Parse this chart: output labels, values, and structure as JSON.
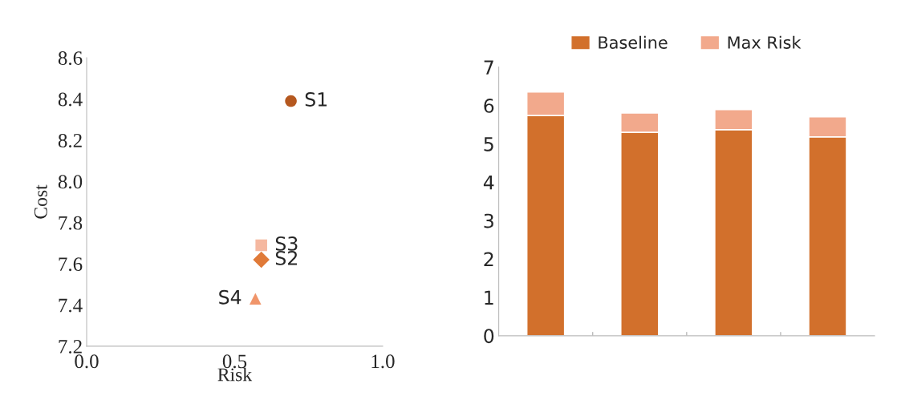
{
  "chart_data": [
    {
      "type": "scatter",
      "xlabel": "Risk",
      "ylabel": "Cost",
      "xlim": [
        0,
        1.0
      ],
      "xticks": [
        {
          "value": 0,
          "label": "0.0"
        },
        {
          "value": 0.5,
          "label": "0.5"
        },
        {
          "value": 1.0,
          "label": "1.0"
        }
      ],
      "ylim": [
        7.2,
        8.6
      ],
      "yticks": [
        {
          "value": 7.2,
          "label": "7.2"
        },
        {
          "value": 7.4,
          "label": "7.4"
        },
        {
          "value": 7.6,
          "label": "7.6"
        },
        {
          "value": 7.8,
          "label": "7.8"
        },
        {
          "value": 8.0,
          "label": "8.0"
        },
        {
          "value": 8.2,
          "label": "8.2"
        },
        {
          "value": 8.4,
          "label": "8.4"
        },
        {
          "value": 8.6,
          "label": "8.6"
        }
      ],
      "grid": false,
      "legend": false,
      "series": [
        {
          "name": "S1",
          "color": "#b5581f",
          "marker": "circle",
          "x": [
            0.69
          ],
          "values": [
            8.39
          ]
        },
        {
          "name": "S3",
          "color": "#f5b8a0",
          "marker": "square",
          "x": [
            0.59
          ],
          "values": [
            7.69
          ]
        },
        {
          "name": "S2",
          "color": "#e07a38",
          "marker": "diamond",
          "x": [
            0.59
          ],
          "values": [
            7.62
          ]
        },
        {
          "name": "S4",
          "color": "#f0956a",
          "marker": "triangle",
          "x": [
            0.57
          ],
          "values": [
            7.43
          ]
        }
      ]
    },
    {
      "type": "bar",
      "stacked": true,
      "categories": [
        null,
        null,
        null,
        null
      ],
      "ylim": [
        0,
        7
      ],
      "yticks": [
        0,
        1,
        2,
        3,
        4,
        5,
        6,
        7
      ],
      "grid": false,
      "legend": "top",
      "series": [
        {
          "name": "Baseline",
          "color": "#d2702c",
          "values": [
            5.74,
            5.3,
            5.37,
            5.18
          ]
        },
        {
          "name": "Max Risk",
          "color": "#f2a98c",
          "values": [
            0.61,
            0.5,
            0.52,
            0.52
          ]
        }
      ]
    }
  ]
}
